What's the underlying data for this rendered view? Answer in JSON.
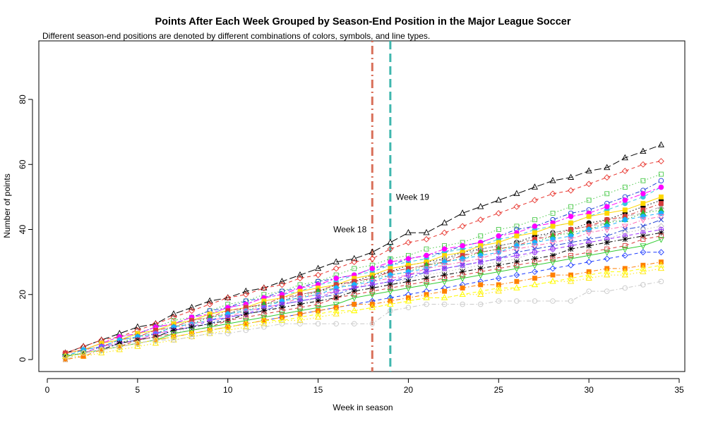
{
  "chart_data": {
    "type": "line",
    "title": "Points After Each Week Grouped by Season-End Position in the Major League Soccer",
    "subtitle": "Different season-end positions are denoted by different combinations of colors, symbols, and line types.",
    "xlabel": "Week in season",
    "ylabel": "Number of points",
    "xlim": [
      0,
      35
    ],
    "ylim": [
      -3,
      95
    ],
    "xticks": [
      0,
      5,
      10,
      15,
      20,
      25,
      30,
      35
    ],
    "yticks": [
      0,
      20,
      40,
      60,
      80
    ],
    "grid": false,
    "annotations": [
      {
        "label": "Week 18",
        "x": 18,
        "label_y": 40,
        "color": "#d9705a",
        "dash": "dotdash"
      },
      {
        "label": "Week 19",
        "x": 19,
        "label_y": 50,
        "color": "#3fb7ae",
        "dash": "dashed"
      }
    ],
    "x": [
      1,
      2,
      3,
      4,
      5,
      6,
      7,
      8,
      9,
      10,
      11,
      12,
      13,
      14,
      15,
      16,
      17,
      18,
      19,
      20,
      21,
      22,
      23,
      24,
      25,
      26,
      27,
      28,
      29,
      30,
      31,
      32,
      33,
      34
    ],
    "series": [
      {
        "values": [
          2,
          4,
          6,
          8,
          10,
          11,
          14,
          16,
          18,
          19,
          21,
          22,
          24,
          26,
          28,
          30,
          31,
          33,
          36,
          39,
          39,
          42,
          45,
          47,
          49,
          51,
          53,
          55,
          56,
          58,
          59,
          62,
          64,
          66
        ],
        "color": "#000000",
        "marker": "triangle",
        "dash": "longdash"
      },
      {
        "values": [
          2,
          4,
          6,
          7,
          9,
          11,
          13,
          15,
          17,
          19,
          20,
          22,
          23,
          25,
          26,
          28,
          30,
          31,
          34,
          36,
          37,
          39,
          41,
          43,
          45,
          47,
          49,
          51,
          52,
          54,
          56,
          58,
          60,
          61
        ],
        "color": "#e8352e",
        "marker": "diamond",
        "dash": "dashed"
      },
      {
        "values": [
          1,
          3,
          5,
          7,
          8,
          10,
          12,
          13,
          15,
          17,
          18,
          20,
          21,
          23,
          24,
          26,
          28,
          29,
          31,
          32,
          34,
          35,
          36,
          38,
          40,
          41,
          43,
          45,
          47,
          49,
          51,
          53,
          55,
          57
        ],
        "color": "#4ac94a",
        "marker": "square",
        "dash": "dotted"
      },
      {
        "values": [
          2,
          3,
          5,
          6,
          8,
          10,
          11,
          13,
          15,
          16,
          18,
          19,
          21,
          22,
          24,
          25,
          26,
          28,
          29,
          31,
          32,
          33,
          35,
          36,
          38,
          40,
          41,
          43,
          45,
          46,
          48,
          50,
          52,
          55
        ],
        "color": "#1f3fd6",
        "marker": "circle",
        "dash": "dotdash"
      },
      {
        "values": [
          1,
          3,
          4,
          6,
          8,
          9,
          11,
          12,
          14,
          16,
          17,
          19,
          20,
          21,
          23,
          24,
          26,
          27,
          29,
          30,
          31,
          33,
          34,
          35,
          37,
          38,
          40,
          41,
          42,
          44,
          46,
          48,
          50,
          53
        ],
        "color": "#39c7e0",
        "marker": "filledcircle",
        "dash": "dashed"
      },
      {
        "values": [
          2,
          3,
          5,
          7,
          8,
          10,
          11,
          13,
          14,
          16,
          17,
          19,
          20,
          22,
          23,
          25,
          26,
          28,
          30,
          31,
          32,
          34,
          35,
          36,
          38,
          39,
          41,
          42,
          44,
          45,
          47,
          49,
          51,
          53
        ],
        "color": "#ff00ff",
        "marker": "filledcircle",
        "dash": "twodash"
      },
      {
        "values": [
          1,
          2,
          4,
          5,
          7,
          8,
          10,
          11,
          13,
          14,
          16,
          17,
          18,
          20,
          21,
          23,
          24,
          26,
          27,
          29,
          30,
          31,
          33,
          34,
          35,
          36,
          38,
          39,
          40,
          42,
          43,
          45,
          47,
          49
        ],
        "color": "#000000",
        "marker": "filledcircle",
        "dash": "dotted"
      },
      {
        "values": [
          2,
          3,
          5,
          6,
          8,
          9,
          11,
          12,
          14,
          15,
          16,
          18,
          19,
          21,
          22,
          23,
          25,
          26,
          28,
          29,
          30,
          32,
          33,
          35,
          36,
          38,
          39,
          41,
          42,
          44,
          45,
          46,
          48,
          50
        ],
        "color": "#ffd700",
        "marker": "filledsquare",
        "dash": "solid"
      },
      {
        "values": [
          1,
          3,
          4,
          6,
          7,
          9,
          10,
          12,
          13,
          14,
          16,
          17,
          18,
          20,
          21,
          22,
          24,
          25,
          27,
          28,
          29,
          31,
          32,
          34,
          35,
          36,
          37,
          39,
          40,
          41,
          42,
          44,
          45,
          47
        ],
        "color": "#aaaaaa",
        "marker": "filledtriangle",
        "dash": "dashed"
      },
      {
        "values": [
          2,
          3,
          4,
          6,
          7,
          9,
          10,
          12,
          13,
          15,
          16,
          17,
          19,
          20,
          21,
          23,
          24,
          25,
          27,
          28,
          29,
          30,
          32,
          33,
          34,
          35,
          37,
          38,
          40,
          41,
          43,
          44,
          46,
          48
        ],
        "color": "#d63d3d",
        "marker": "filledsquare",
        "dash": "dotdash"
      },
      {
        "values": [
          1,
          2,
          4,
          5,
          7,
          8,
          10,
          11,
          13,
          14,
          15,
          17,
          18,
          19,
          21,
          22,
          23,
          25,
          26,
          27,
          29,
          30,
          31,
          33,
          34,
          35,
          36,
          38,
          39,
          40,
          42,
          43,
          45,
          46
        ],
        "color": "#2eb82e",
        "marker": "filledtriangle",
        "dash": "dotted"
      },
      {
        "values": [
          1,
          3,
          4,
          6,
          7,
          8,
          10,
          11,
          12,
          14,
          15,
          16,
          18,
          19,
          20,
          22,
          23,
          24,
          26,
          27,
          28,
          30,
          31,
          32,
          33,
          35,
          36,
          37,
          38,
          40,
          41,
          43,
          44,
          45
        ],
        "color": "#1ab2ff",
        "marker": "filledcircle",
        "dash": "dashed"
      },
      {
        "values": [
          1,
          2,
          4,
          5,
          6,
          8,
          9,
          11,
          12,
          13,
          15,
          16,
          17,
          19,
          20,
          21,
          22,
          24,
          25,
          26,
          28,
          29,
          30,
          31,
          33,
          34,
          35,
          36,
          37,
          39,
          40,
          41,
          43,
          44
        ],
        "color": "#ff69b4",
        "marker": "triangledown",
        "dash": "dotdash"
      },
      {
        "values": [
          1,
          2,
          3,
          5,
          6,
          7,
          9,
          10,
          11,
          13,
          14,
          15,
          17,
          18,
          19,
          20,
          22,
          23,
          24,
          25,
          27,
          28,
          29,
          30,
          31,
          33,
          34,
          35,
          36,
          37,
          38,
          40,
          41,
          43
        ],
        "color": "#2a4bd7",
        "marker": "xcross",
        "dash": "twodash"
      },
      {
        "values": [
          1,
          2,
          3,
          4,
          6,
          7,
          8,
          10,
          11,
          12,
          14,
          15,
          16,
          17,
          19,
          20,
          21,
          22,
          23,
          25,
          26,
          27,
          28,
          29,
          30,
          31,
          33,
          34,
          35,
          36,
          37,
          39,
          40,
          41
        ],
        "color": "#bfbfbf",
        "marker": "diamond",
        "dash": "dotted"
      },
      {
        "values": [
          1,
          2,
          4,
          5,
          6,
          8,
          9,
          10,
          12,
          13,
          14,
          16,
          17,
          18,
          19,
          21,
          22,
          23,
          24,
          26,
          27,
          28,
          29,
          30,
          31,
          32,
          33,
          34,
          35,
          36,
          37,
          38,
          39,
          40
        ],
        "color": "#9b30ff",
        "marker": "circleplus",
        "dash": "dashed"
      },
      {
        "values": [
          1,
          2,
          3,
          5,
          6,
          7,
          9,
          10,
          11,
          12,
          14,
          15,
          16,
          17,
          18,
          19,
          21,
          22,
          23,
          24,
          25,
          26,
          27,
          28,
          29,
          30,
          31,
          32,
          34,
          35,
          36,
          37,
          38,
          39
        ],
        "color": "#000000",
        "marker": "asterisk",
        "dash": "dotdash"
      },
      {
        "values": [
          1,
          2,
          3,
          4,
          6,
          7,
          8,
          9,
          10,
          12,
          13,
          14,
          15,
          16,
          17,
          19,
          20,
          21,
          22,
          23,
          24,
          25,
          26,
          27,
          28,
          29,
          30,
          31,
          32,
          33,
          34,
          35,
          37,
          38
        ],
        "color": "#d73b3b",
        "marker": "square",
        "dash": "dashed"
      },
      {
        "values": [
          1,
          2,
          3,
          4,
          5,
          6,
          8,
          9,
          10,
          11,
          12,
          13,
          14,
          15,
          16,
          17,
          19,
          20,
          21,
          22,
          23,
          24,
          25,
          26,
          27,
          28,
          29,
          30,
          31,
          32,
          33,
          34,
          35,
          37
        ],
        "color": "#33cc33",
        "marker": "triangledown",
        "dash": "solid"
      },
      {
        "values": [
          1,
          2,
          3,
          4,
          5,
          6,
          7,
          8,
          9,
          10,
          11,
          12,
          13,
          14,
          15,
          16,
          17,
          18,
          19,
          20,
          21,
          22,
          23,
          24,
          25,
          26,
          27,
          28,
          29,
          30,
          31,
          32,
          33,
          33
        ],
        "color": "#1e3cff",
        "marker": "diamond",
        "dash": "dashed"
      },
      {
        "values": [
          1,
          1,
          2,
          3,
          4,
          5,
          6,
          7,
          8,
          9,
          10,
          11,
          12,
          12,
          13,
          14,
          15,
          16,
          17,
          18,
          19,
          19,
          20,
          20,
          21,
          22,
          23,
          24,
          24,
          25,
          26,
          26,
          27,
          28
        ],
        "color": "#ffe600",
        "marker": "triangle",
        "dash": "dotted"
      },
      {
        "values": [
          0,
          1,
          3,
          4,
          5,
          6,
          7,
          8,
          9,
          10,
          11,
          12,
          13,
          14,
          15,
          16,
          17,
          17,
          18,
          19,
          20,
          21,
          22,
          23,
          23,
          24,
          25,
          26,
          26,
          27,
          28,
          28,
          29,
          30
        ],
        "color": "#ff7f00",
        "marker": "filledsquare",
        "dash": "dotdash"
      },
      {
        "values": [
          1,
          2,
          3,
          4,
          5,
          6,
          7,
          8,
          9,
          10,
          11,
          12,
          12,
          13,
          14,
          15,
          15,
          16,
          17,
          18,
          19,
          19,
          20,
          21,
          22,
          22,
          23,
          24,
          25,
          26,
          27,
          27,
          28,
          29
        ],
        "color": "#ffff00",
        "marker": "triangle",
        "dash": "dashed"
      },
      {
        "values": [
          0,
          2,
          3,
          4,
          5,
          6,
          6,
          7,
          8,
          8,
          9,
          10,
          11,
          11,
          11,
          11,
          11,
          11,
          15,
          16,
          17,
          17,
          17,
          17,
          18,
          18,
          18,
          18,
          18,
          21,
          21,
          22,
          23,
          24
        ],
        "color": "#c8c8c8",
        "marker": "circle",
        "dash": "dotdash"
      }
    ]
  }
}
